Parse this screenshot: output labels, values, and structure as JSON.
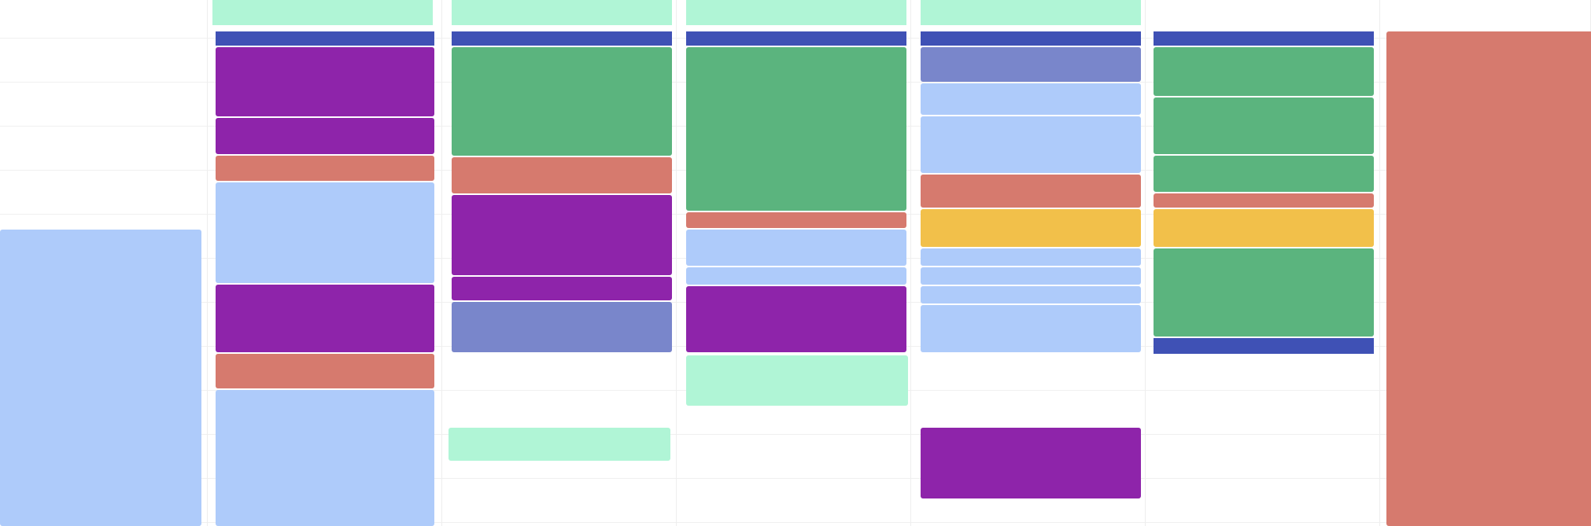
{
  "colors": {
    "light_blue": "#aecbfa",
    "purple": "#8e24aa",
    "salmon": "#d67a6e",
    "green": "#5bb47e",
    "mint": "#b0f5d6",
    "navy": "#3f51b5",
    "lavender": "#7986cb",
    "yellow": "#f2c04a"
  },
  "columns": [
    {
      "events": [
        {
          "title": "",
          "time": "",
          "color": "light_blue",
          "tone": "light"
        }
      ]
    },
    {
      "events": [
        {
          "title": "",
          "time": "",
          "color": "mint",
          "tone": "light"
        },
        {
          "title": "",
          "time": "",
          "color": "navy",
          "tone": "dark"
        },
        {
          "title": "",
          "time": "",
          "color": "purple",
          "tone": "dark"
        },
        {
          "title": "",
          "time": "",
          "color": "purple",
          "tone": "dark"
        },
        {
          "title": "",
          "time": "",
          "color": "salmon",
          "tone": "dark"
        },
        {
          "title": "",
          "time": "",
          "color": "light_blue",
          "tone": "light"
        },
        {
          "title": "",
          "time": "",
          "color": "purple",
          "tone": "dark"
        },
        {
          "title": "",
          "time": "",
          "color": "salmon",
          "tone": "dark"
        },
        {
          "title": "",
          "time": "",
          "color": "light_blue",
          "tone": "light"
        }
      ]
    },
    {
      "events": [
        {
          "title": "",
          "time": "",
          "color": "mint",
          "tone": "light"
        },
        {
          "title": "",
          "time": "",
          "color": "navy",
          "tone": "dark"
        },
        {
          "title": "",
          "time": "",
          "color": "green",
          "tone": "dark"
        },
        {
          "title": "",
          "time": "",
          "color": "salmon",
          "tone": "dark"
        },
        {
          "title": "",
          "time": "",
          "color": "purple",
          "tone": "dark"
        },
        {
          "title": "",
          "time": "",
          "color": "purple",
          "tone": "dark"
        },
        {
          "title": "",
          "time": "",
          "color": "purple",
          "tone": "dark"
        },
        {
          "title": "",
          "time": "",
          "color": "lavender",
          "tone": "dark"
        },
        {
          "title": "",
          "time": "",
          "color": "mint",
          "tone": "light"
        }
      ]
    },
    {
      "events": [
        {
          "title": "",
          "time": "",
          "color": "mint",
          "tone": "light"
        },
        {
          "title": "",
          "time": "",
          "color": "navy",
          "tone": "dark"
        },
        {
          "title": "",
          "time": "",
          "color": "green",
          "tone": "dark"
        },
        {
          "title": "",
          "time": "",
          "color": "salmon",
          "tone": "dark"
        },
        {
          "title": "",
          "time": "",
          "color": "light_blue",
          "tone": "light"
        },
        {
          "title": "",
          "time": "",
          "color": "light_blue",
          "tone": "light"
        },
        {
          "title": "",
          "time": "",
          "color": "purple",
          "tone": "dark"
        },
        {
          "title": "",
          "time": "",
          "color": "mint",
          "tone": "light"
        }
      ]
    },
    {
      "events": [
        {
          "title": "",
          "time": "",
          "color": "mint",
          "tone": "light"
        },
        {
          "title": "",
          "time": "",
          "color": "navy",
          "tone": "dark"
        },
        {
          "title": "",
          "time": "",
          "color": "lavender",
          "tone": "dark"
        },
        {
          "title": "",
          "time": "",
          "color": "light_blue",
          "tone": "light"
        },
        {
          "title": "",
          "time": "",
          "color": "light_blue",
          "tone": "light"
        },
        {
          "title": "",
          "time": "",
          "color": "salmon",
          "tone": "dark"
        },
        {
          "title": "",
          "time": "",
          "color": "yellow",
          "tone": "light"
        },
        {
          "title": "",
          "time": "",
          "color": "light_blue",
          "tone": "light"
        },
        {
          "title": "",
          "time": "",
          "color": "light_blue",
          "tone": "light"
        },
        {
          "title": "",
          "time": "",
          "color": "light_blue",
          "tone": "light"
        },
        {
          "title": "",
          "time": "",
          "color": "light_blue",
          "tone": "light"
        },
        {
          "title": "",
          "time": "",
          "color": "purple",
          "tone": "dark"
        }
      ]
    },
    {
      "events": [
        {
          "title": "",
          "time": "",
          "color": "navy",
          "tone": "dark"
        },
        {
          "title": "",
          "time": "",
          "color": "green",
          "tone": "dark"
        },
        {
          "title": "",
          "time": "",
          "color": "green",
          "tone": "dark"
        },
        {
          "title": "",
          "time": "",
          "color": "green",
          "tone": "dark"
        },
        {
          "title": "",
          "time": "",
          "color": "salmon",
          "tone": "dark"
        },
        {
          "title": "",
          "time": "",
          "color": "yellow",
          "tone": "light"
        },
        {
          "title": "",
          "time": "",
          "color": "green",
          "tone": "dark"
        },
        {
          "title": "",
          "time": "",
          "color": "navy",
          "tone": "dark"
        }
      ]
    },
    {
      "events": [
        {
          "title": "",
          "time": "",
          "color": "salmon",
          "tone": "dark"
        }
      ]
    }
  ]
}
